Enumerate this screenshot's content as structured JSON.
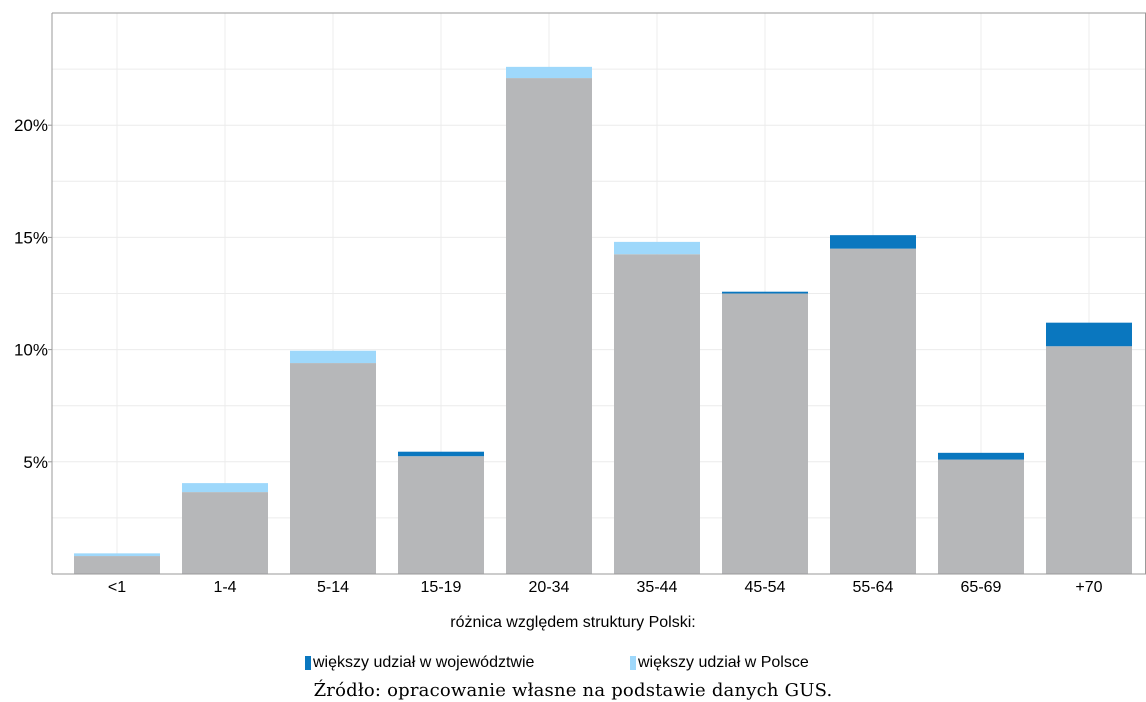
{
  "chart_data": {
    "type": "bar",
    "stacked": true,
    "categories": [
      "<1",
      "1-4",
      "5-14",
      "15-19",
      "20-34",
      "35-44",
      "45-54",
      "55-64",
      "65-69",
      "+70"
    ],
    "base_values": [
      0.8,
      3.65,
      9.4,
      5.25,
      22.1,
      14.25,
      12.5,
      14.5,
      5.1,
      10.15
    ],
    "excess_values": [
      0.12,
      0.4,
      0.55,
      0.2,
      0.5,
      0.55,
      0.08,
      0.6,
      0.3,
      1.05
    ],
    "excess_type": [
      "polska",
      "polska",
      "polska",
      "wojewodztwo",
      "polska",
      "polska",
      "wojewodztwo",
      "wojewodztwo",
      "wojewodztwo",
      "wojewodztwo"
    ],
    "yticks": [
      5,
      10,
      15,
      20
    ],
    "ytick_labels": [
      "5%",
      "10%",
      "15%",
      "20%"
    ],
    "ylim": [
      0,
      25
    ],
    "grid": true,
    "xlabel": "",
    "ylabel": "",
    "title": ""
  },
  "colors": {
    "base": "#b6b7b9",
    "wojewodztwo": "#0a77bf",
    "polska": "#9ed8fb",
    "grid": "#ececec",
    "axis": "#9a9a9a"
  },
  "legend": {
    "title": "różnica względem struktury Polski:",
    "items": [
      {
        "key": "wojewodztwo",
        "label": "większy udział w województwie"
      },
      {
        "key": "polska",
        "label": "większy udział w Polsce"
      }
    ]
  },
  "source": "Źródło: opracowanie własne na podstawie danych GUS."
}
